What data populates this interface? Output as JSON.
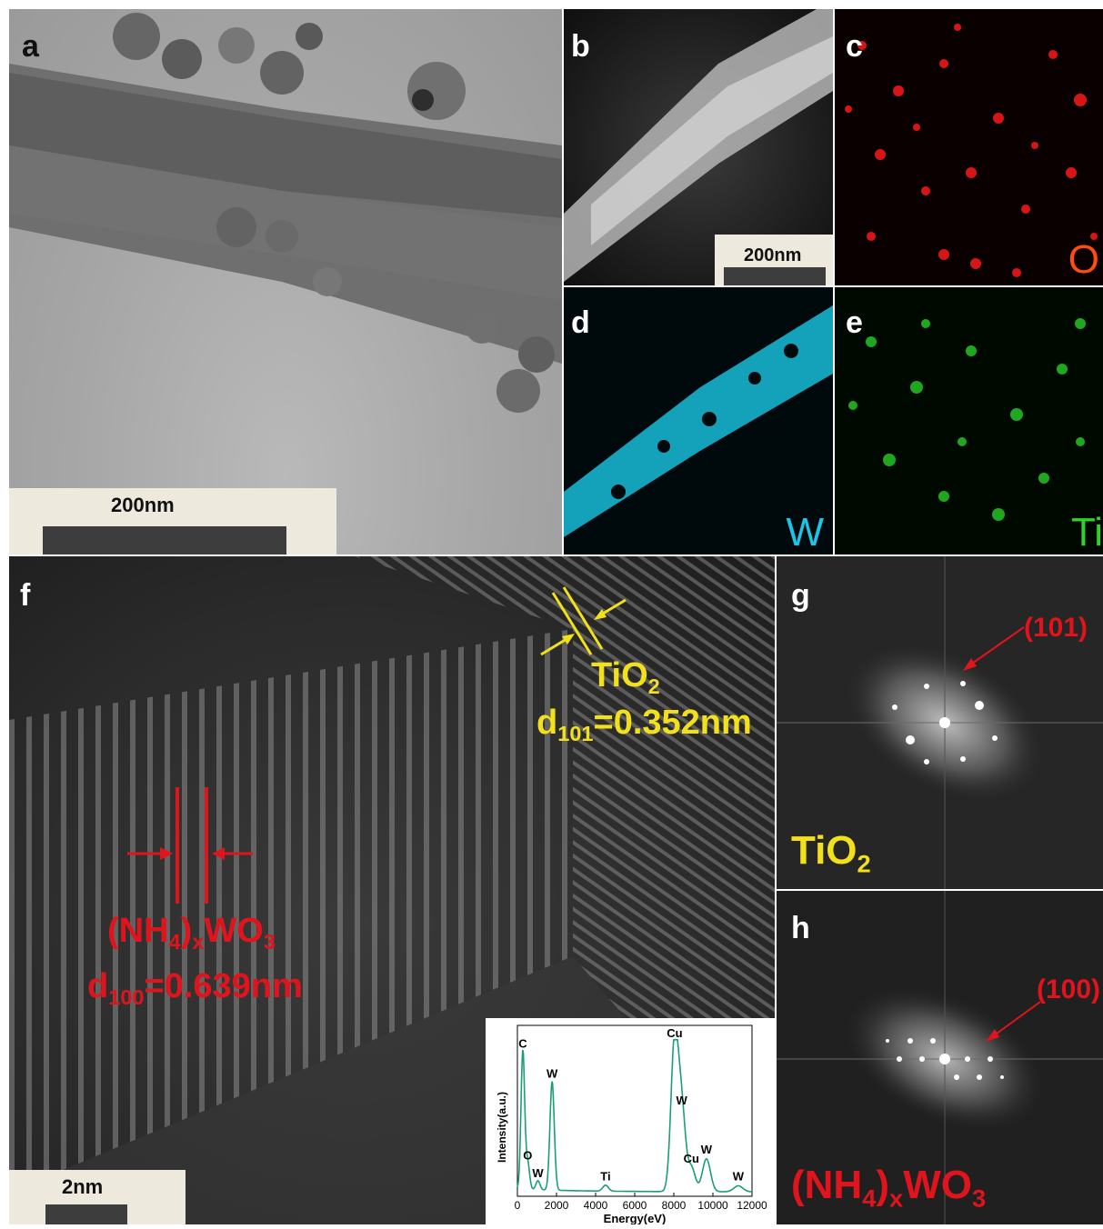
{
  "panels": {
    "a": {
      "label": "a",
      "scale": "200nm"
    },
    "b": {
      "label": "b",
      "scale": "200nm"
    },
    "c": {
      "label": "c",
      "element": "O"
    },
    "d": {
      "label": "d",
      "element": "W"
    },
    "e": {
      "label": "e",
      "element": "Ti"
    },
    "f": {
      "label": "f",
      "scale": "2nm",
      "tio2": {
        "name": "TiO",
        "name_sub": "2",
        "d_prefix": "d",
        "d_sub": "101",
        "d_value": "=0.352nm"
      },
      "nh4wo3": {
        "p1": "(NH",
        "p1_sub": "4",
        "p2": ")",
        "p2_sub": "x",
        "p3": "WO",
        "p3_sub": "3",
        "d_prefix": "d",
        "d_sub": "100",
        "d_value": "=0.639nm"
      }
    },
    "g": {
      "label": "g",
      "index": "(101)",
      "material": "TiO",
      "material_sub": "2"
    },
    "h": {
      "label": "h",
      "index": "(100)",
      "m1": "(NH",
      "m1_sub": "4",
      "m2": ")",
      "m2_sub": "x",
      "m3": "WO",
      "m3_sub": "3"
    }
  },
  "colors": {
    "red": "#e0141c",
    "yellow": "#f2e01a",
    "oxygen": "#ff4d12",
    "tungsten": "#1cc4e6",
    "titanium": "#2fd12f"
  },
  "eds": {
    "ylabel": "Intensity(a.u.)",
    "xlabel": "Energy(eV)",
    "xlim": [
      0,
      12000
    ],
    "xticks": [
      "0",
      "2000",
      "4000",
      "6000",
      "8000",
      "10000",
      "12000"
    ],
    "peaks": [
      {
        "label": "C",
        "x": 277,
        "h": 0.93
      },
      {
        "label": "O",
        "x": 525,
        "h": 0.18
      },
      {
        "label": "W",
        "x": 1050,
        "h": 0.06
      },
      {
        "label": "W",
        "x": 1775,
        "h": 0.73
      },
      {
        "label": "Ti",
        "x": 4510,
        "h": 0.04
      },
      {
        "label": "Cu",
        "x": 8040,
        "h": 1.0
      },
      {
        "label": "W",
        "x": 8400,
        "h": 0.55
      },
      {
        "label": "Cu",
        "x": 8900,
        "h": 0.16
      },
      {
        "label": "W",
        "x": 9670,
        "h": 0.22
      },
      {
        "label": "W",
        "x": 11300,
        "h": 0.04
      }
    ]
  }
}
